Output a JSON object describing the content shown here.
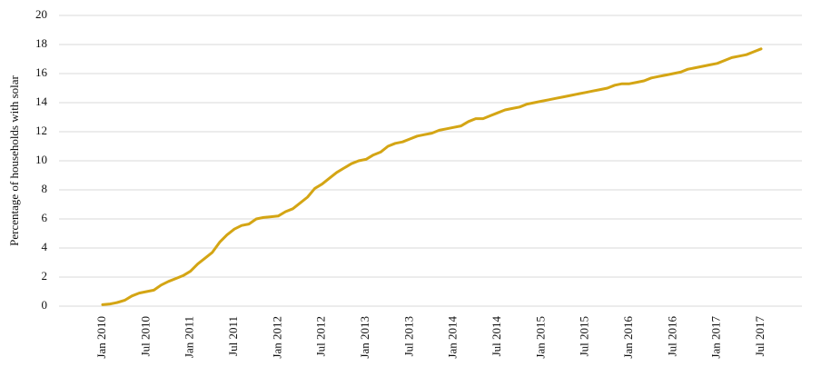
{
  "chart_data": {
    "type": "line",
    "y_label": "Percentage of households with solar",
    "categories": [
      "Jan 2010",
      null,
      null,
      null,
      null,
      null,
      "Jul 2010",
      null,
      null,
      null,
      null,
      null,
      "Jan 2011",
      null,
      null,
      null,
      null,
      null,
      "Jul 2011",
      null,
      null,
      null,
      null,
      null,
      "Jan 2012",
      null,
      null,
      null,
      null,
      null,
      "Jul 2012",
      null,
      null,
      null,
      null,
      null,
      "Jan 2013",
      null,
      null,
      null,
      null,
      null,
      "Jul 2013",
      null,
      null,
      null,
      null,
      null,
      "Jan 2014",
      null,
      null,
      null,
      null,
      null,
      "Jul 2014",
      null,
      null,
      null,
      null,
      null,
      "Jan 2015",
      null,
      null,
      null,
      null,
      null,
      "Jul 2015",
      null,
      null,
      null,
      null,
      null,
      "Jan 2016",
      null,
      null,
      null,
      null,
      null,
      "Jul 2016",
      null,
      null,
      null,
      null,
      null,
      "Jan 2017",
      null,
      null,
      null,
      null,
      null,
      "Jul 2017"
    ],
    "values": [
      0.1,
      0.15,
      0.25,
      0.4,
      0.7,
      0.9,
      1.0,
      1.1,
      1.45,
      1.7,
      1.9,
      2.1,
      2.4,
      2.9,
      3.3,
      3.7,
      4.4,
      4.9,
      5.3,
      5.55,
      5.65,
      6.0,
      6.1,
      6.15,
      6.2,
      6.5,
      6.7,
      7.1,
      7.5,
      8.1,
      8.4,
      8.8,
      9.2,
      9.5,
      9.8,
      10.0,
      10.1,
      10.4,
      10.6,
      11.0,
      11.2,
      11.3,
      11.5,
      11.7,
      11.8,
      11.9,
      12.1,
      12.2,
      12.3,
      12.4,
      12.7,
      12.9,
      12.9,
      13.1,
      13.3,
      13.5,
      13.6,
      13.7,
      13.9,
      14.0,
      14.1,
      14.2,
      14.3,
      14.4,
      14.5,
      14.6,
      14.7,
      14.8,
      14.9,
      15.0,
      15.2,
      15.3,
      15.3,
      15.4,
      15.5,
      15.7,
      15.8,
      15.9,
      16.0,
      16.1,
      16.3,
      16.4,
      16.5,
      16.6,
      16.7,
      16.9,
      17.1,
      17.2,
      17.3,
      17.5,
      17.7
    ],
    "color": "#d4a514",
    "ylim": [
      0,
      20
    ],
    "yticks": [
      0,
      2,
      4,
      6,
      8,
      10,
      12,
      14,
      16,
      18,
      20
    ],
    "grid": true
  }
}
